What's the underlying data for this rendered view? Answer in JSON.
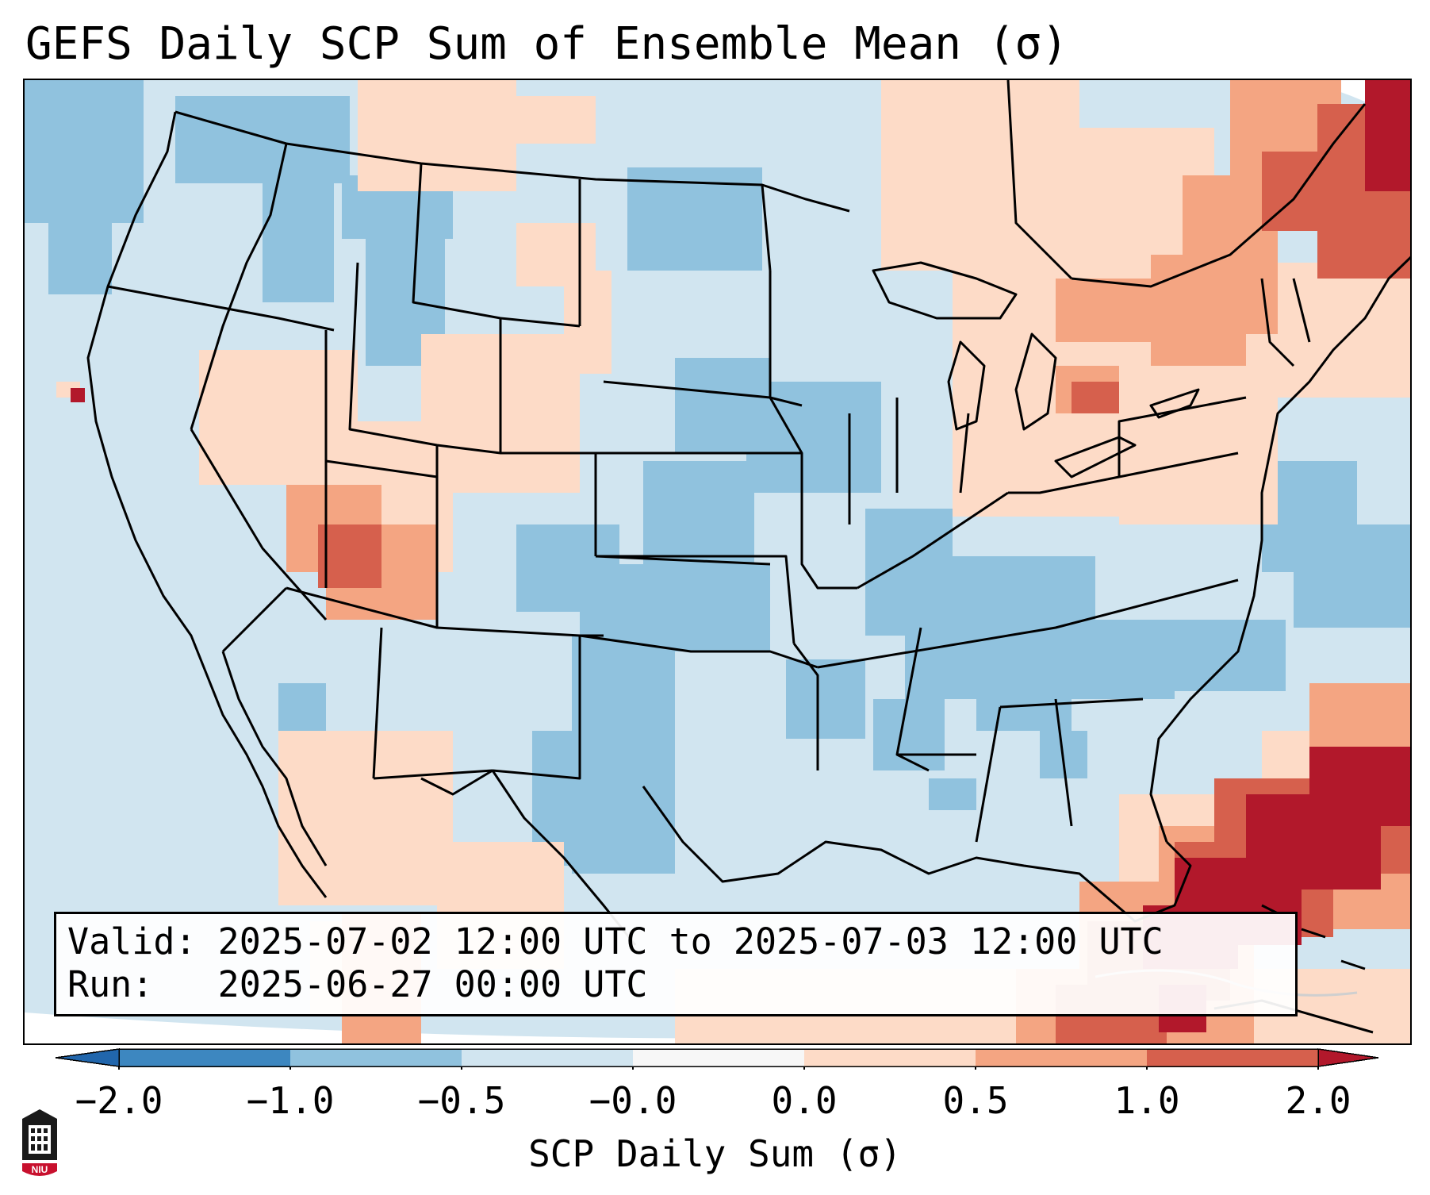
{
  "title": "GEFS Daily SCP Sum of Ensemble Mean (σ)",
  "info": {
    "valid_label": "Valid:",
    "valid_value": "2025-07-02 12:00 UTC to 2025-07-03 12:00 UTC",
    "run_label": "Run:",
    "run_value": "2025-06-27 00:00 UTC"
  },
  "colorbar": {
    "label": "SCP Daily Sum (σ)",
    "ticks": [
      "−2.0",
      "−1.0",
      "−0.5",
      "−0.0",
      "0.0",
      "0.5",
      "1.0",
      "2.0"
    ],
    "colors": [
      "#3d87c0",
      "#90c2de",
      "#d1e5f0",
      "#f7f7f7",
      "#fddbc7",
      "#f4a582",
      "#d6604d",
      "#b2182b"
    ]
  },
  "map": {
    "region": "Contiguous United States, northern Mexico, Gulf of Mexico and western Atlantic",
    "features": [
      {
        "name": "Southwest high anomaly (Utah/Arizona)",
        "category": "0.5 to 1.0"
      },
      {
        "name": "Southern Plains low anomaly (Texas/Oklahoma)",
        "category": "-1.0 to -0.5"
      },
      {
        "name": "Northeast / Maine high anomaly",
        "category": "1.0 to 2.0"
      },
      {
        "name": "Florida and western Atlantic high anomaly",
        "category": "> 2.0"
      }
    ]
  },
  "logo": {
    "text": "NIU"
  }
}
